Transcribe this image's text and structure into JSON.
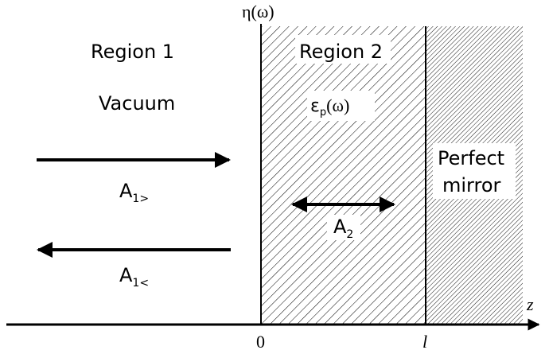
{
  "axis": {
    "top_label": "η(ω)",
    "z_label": "z",
    "origin_tick": "0",
    "l_tick": "l"
  },
  "region1": {
    "title": "Region 1",
    "medium": "Vacuum",
    "wave_right": {
      "base": "A",
      "sub": "1>"
    },
    "wave_left": {
      "base": "A",
      "sub": "1<"
    }
  },
  "region2": {
    "title": "Region 2",
    "permittivity": {
      "base": "ε",
      "sub": "p",
      "arg": "(ω)"
    },
    "wave": {
      "base": "A",
      "sub": "2"
    }
  },
  "mirror": {
    "line1": "Perfect",
    "line2": "mirror"
  },
  "colors": {
    "ink": "#000000",
    "background": "#ffffff"
  }
}
